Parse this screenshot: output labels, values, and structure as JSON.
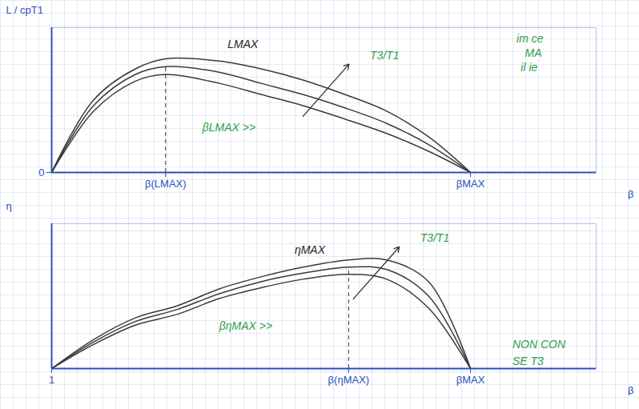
{
  "chart_data": [
    {
      "type": "line",
      "xlabel": "β",
      "ylabel": "L / cpT1",
      "x": [
        1,
        2,
        3,
        3.72,
        5,
        6,
        7,
        8,
        9,
        10,
        11
      ],
      "series": [
        {
          "color": "#3a3a3a",
          "values": [
            0,
            0.55,
            0.82,
            0.88,
            0.8,
            0.7,
            0.6,
            0.48,
            0.35,
            0.19,
            0
          ]
        },
        {
          "color": "#3a3a3a",
          "values": [
            0,
            0.6,
            0.88,
            0.95,
            0.9,
            0.8,
            0.7,
            0.58,
            0.44,
            0.25,
            0
          ]
        },
        {
          "color": "#3a3a3a",
          "values": [
            0,
            0.65,
            0.93,
            1.02,
            1.0,
            0.93,
            0.83,
            0.7,
            0.55,
            0.32,
            0
          ]
        }
      ],
      "xlim": [
        1,
        14
      ],
      "ylim": [
        0,
        1.3
      ],
      "xticks": [
        {
          "value": 3.72,
          "label": "β(LMAX)"
        },
        {
          "value": 11,
          "label": "βMAX"
        }
      ],
      "yticks": [
        0
      ],
      "annotations": [
        {
          "text": "LMAX",
          "x": 5.2,
          "y": 1.15,
          "color": "#222222"
        },
        {
          "text": "T3/T1",
          "x": 8.6,
          "y": 1.05,
          "color": "#2e9e4a"
        },
        {
          "text": "βLMAX >>",
          "x": 4.6,
          "y": 0.4,
          "color": "#2e9e4a"
        },
        {
          "text": "im ce",
          "x": 12.1,
          "y": 1.2,
          "color": "#2e9e4a"
        },
        {
          "text": "MA",
          "x": 12.3,
          "y": 1.07,
          "color": "#2e9e4a"
        },
        {
          "text": "il ie",
          "x": 12.2,
          "y": 0.94,
          "color": "#2e9e4a"
        }
      ]
    },
    {
      "type": "line",
      "xlabel": "β",
      "ylabel": "η",
      "x": [
        1,
        2,
        3,
        4,
        5,
        6,
        7,
        8.09,
        9,
        10,
        11
      ],
      "series": [
        {
          "color": "#3a3a3a",
          "values": [
            0,
            0.2,
            0.36,
            0.45,
            0.58,
            0.67,
            0.74,
            0.78,
            0.74,
            0.5,
            0
          ]
        },
        {
          "color": "#3a3a3a",
          "values": [
            0,
            0.22,
            0.39,
            0.49,
            0.62,
            0.72,
            0.79,
            0.84,
            0.82,
            0.6,
            0
          ]
        },
        {
          "color": "#3a3a3a",
          "values": [
            0,
            0.24,
            0.42,
            0.52,
            0.66,
            0.76,
            0.84,
            0.9,
            0.9,
            0.72,
            0
          ]
        }
      ],
      "xlim": [
        1,
        14
      ],
      "ylim": [
        0,
        1.2
      ],
      "xticks": [
        1,
        {
          "value": 8.09,
          "label": "β(ηMAX)"
        },
        {
          "value": 11,
          "label": "βMAX"
        }
      ],
      "yticks": [],
      "annotations": [
        {
          "text": "ηMAX",
          "x": 6.8,
          "y": 0.98,
          "color": "#222222"
        },
        {
          "text": "T3/T1",
          "x": 9.8,
          "y": 1.08,
          "color": "#2e9e4a"
        },
        {
          "text": "βηMAX >>",
          "x": 5.0,
          "y": 0.35,
          "color": "#2e9e4a"
        },
        {
          "text": "NON CON",
          "x": 12.0,
          "y": 0.2,
          "color": "#2e9e4a"
        },
        {
          "text": "SE T3",
          "x": 12.0,
          "y": 0.06,
          "color": "#2e9e4a"
        }
      ]
    }
  ]
}
